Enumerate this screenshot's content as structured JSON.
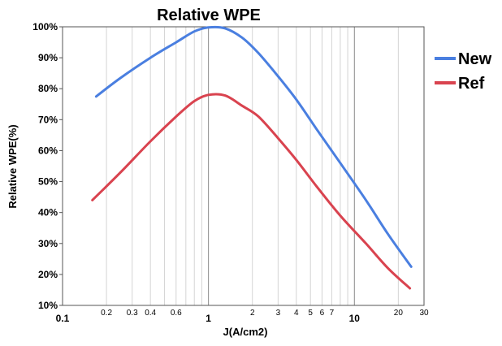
{
  "chart_data": {
    "type": "line",
    "title": "Relative WPE",
    "xlabel": "J(A/cm2)",
    "ylabel": "Relative WPE(%)",
    "x_scale": "log",
    "xlim": [
      0.1,
      30
    ],
    "ylim": [
      10,
      100
    ],
    "grid": true,
    "legend_position": "right",
    "y_ticks": [
      "10%",
      "20%",
      "30%",
      "40%",
      "50%",
      "60%",
      "70%",
      "80%",
      "90%",
      "100%"
    ],
    "x_major_ticks": [
      {
        "value": 0.1,
        "label": "0.1"
      },
      {
        "value": 1,
        "label": "1"
      },
      {
        "value": 10,
        "label": "10"
      }
    ],
    "x_minor_ticks": [
      {
        "value": 0.2,
        "label": "0.2"
      },
      {
        "value": 0.3,
        "label": "0.3"
      },
      {
        "value": 0.4,
        "label": "0.4"
      },
      {
        "value": 0.5,
        "label": ""
      },
      {
        "value": 0.6,
        "label": "0.6"
      },
      {
        "value": 0.7,
        "label": ""
      },
      {
        "value": 0.8,
        "label": ""
      },
      {
        "value": 0.9,
        "label": ""
      },
      {
        "value": 2,
        "label": "2"
      },
      {
        "value": 3,
        "label": "3"
      },
      {
        "value": 4,
        "label": "4"
      },
      {
        "value": 5,
        "label": "5"
      },
      {
        "value": 6,
        "label": "6"
      },
      {
        "value": 7,
        "label": "7"
      },
      {
        "value": 8,
        "label": ""
      },
      {
        "value": 9,
        "label": ""
      },
      {
        "value": 20,
        "label": "20"
      },
      {
        "value": 30,
        "label": "30"
      }
    ],
    "series": [
      {
        "name": "New",
        "color": "#4a7fe0",
        "points": [
          [
            0.17,
            77.5
          ],
          [
            0.25,
            83.5
          ],
          [
            0.4,
            90
          ],
          [
            0.6,
            95
          ],
          [
            0.8,
            98.5
          ],
          [
            1.0,
            99.8
          ],
          [
            1.3,
            99.5
          ],
          [
            1.7,
            96.5
          ],
          [
            2.2,
            91.5
          ],
          [
            3.0,
            84
          ],
          [
            4.0,
            76.5
          ],
          [
            5.5,
            67
          ],
          [
            8.0,
            56
          ],
          [
            12,
            44
          ],
          [
            17,
            33
          ],
          [
            24.5,
            22.5
          ]
        ]
      },
      {
        "name": "Ref",
        "color": "#d9434f",
        "points": [
          [
            0.16,
            44
          ],
          [
            0.25,
            53
          ],
          [
            0.4,
            63
          ],
          [
            0.6,
            71
          ],
          [
            0.8,
            76
          ],
          [
            1.0,
            78
          ],
          [
            1.3,
            77.8
          ],
          [
            1.7,
            74.5
          ],
          [
            2.2,
            71
          ],
          [
            3.0,
            64
          ],
          [
            4.0,
            57
          ],
          [
            5.5,
            48.5
          ],
          [
            8.0,
            39
          ],
          [
            12,
            30
          ],
          [
            17,
            22
          ],
          [
            24,
            15.5
          ]
        ]
      }
    ]
  }
}
